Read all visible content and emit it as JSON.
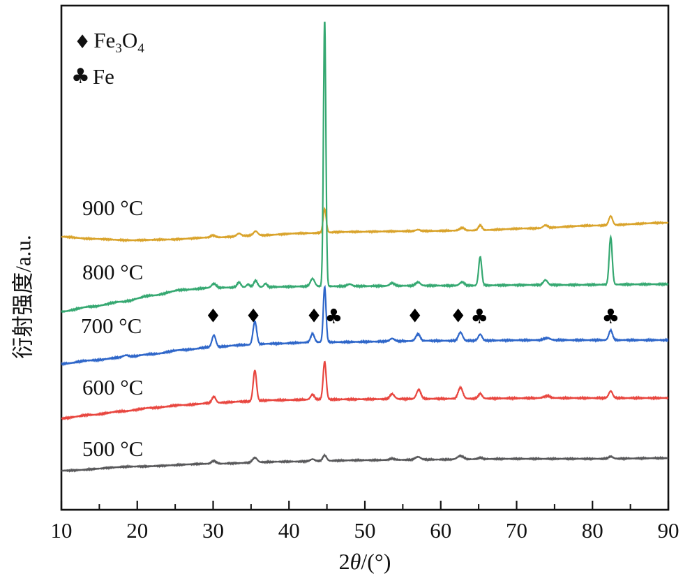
{
  "chart_data": {
    "type": "line",
    "title": "",
    "xlabel_parts": {
      "pre": "2",
      "theta": "θ",
      "post": "/(°)"
    },
    "ylabel": "衍射强度/a.u.",
    "xlim": [
      10,
      90
    ],
    "x_major_ticks": [
      10,
      20,
      30,
      40,
      50,
      60,
      70,
      80,
      90
    ],
    "x_minor_ticks": [
      15,
      25,
      35,
      45,
      55,
      65,
      75,
      85
    ],
    "grid": false,
    "axis_color": "#111111",
    "legend_position": "top-left",
    "legend": [
      {
        "symbol": "♦",
        "phase": "Fe3O4",
        "parts": [
          {
            "t": "Fe"
          },
          {
            "s": "3"
          },
          {
            "t": "O"
          },
          {
            "s": "4"
          }
        ]
      },
      {
        "symbol": "♣",
        "phase": "Fe",
        "parts": [
          {
            "t": "Fe"
          }
        ]
      }
    ],
    "peak_markers": [
      {
        "symbol": "♦",
        "phase": "Fe3O4",
        "two_theta": 30.0
      },
      {
        "symbol": "♦",
        "phase": "Fe3O4",
        "two_theta": 35.3
      },
      {
        "symbol": "♦",
        "phase": "Fe3O4",
        "two_theta": 43.3
      },
      {
        "symbol": "♣",
        "phase": "Fe",
        "two_theta": 45.9
      },
      {
        "symbol": "♦",
        "phase": "Fe3O4",
        "two_theta": 56.6
      },
      {
        "symbol": "♦",
        "phase": "Fe3O4",
        "two_theta": 62.3
      },
      {
        "symbol": "♣",
        "phase": "Fe",
        "two_theta": 65.1
      },
      {
        "symbol": "♣",
        "phase": "Fe",
        "two_theta": 82.4
      }
    ],
    "series": [
      {
        "name": "500 °C",
        "color": "#58585A",
        "seed": 5,
        "noise": 0.7,
        "baseline": [
          [
            10,
            674
          ],
          [
            20,
            668
          ],
          [
            30,
            664
          ],
          [
            40,
            661
          ],
          [
            50,
            659
          ],
          [
            60,
            658
          ],
          [
            70,
            657
          ],
          [
            80,
            657
          ],
          [
            90,
            656
          ]
        ],
        "peaks": [
          [
            30.1,
            4,
            0.3
          ],
          [
            35.5,
            7,
            0.3
          ],
          [
            43.1,
            3,
            0.3
          ],
          [
            44.7,
            8,
            0.25
          ],
          [
            53.6,
            2,
            0.35
          ],
          [
            57.0,
            4,
            0.35
          ],
          [
            62.6,
            5,
            0.4
          ],
          [
            65.2,
            2,
            0.3
          ],
          [
            82.4,
            3,
            0.3
          ]
        ]
      },
      {
        "name": "600 °C",
        "color": "#E8463F",
        "seed": 4,
        "noise": 0.8,
        "baseline": [
          [
            10,
            599
          ],
          [
            14,
            594
          ],
          [
            18,
            589
          ],
          [
            22,
            584
          ],
          [
            26,
            580
          ],
          [
            30,
            577
          ],
          [
            34,
            575
          ],
          [
            38,
            573
          ],
          [
            44,
            572
          ],
          [
            60,
            571
          ],
          [
            75,
            570
          ],
          [
            90,
            570
          ]
        ],
        "peaks": [
          [
            30.1,
            9,
            0.25
          ],
          [
            35.5,
            44,
            0.22
          ],
          [
            43.1,
            7,
            0.25
          ],
          [
            44.7,
            54,
            0.2
          ],
          [
            53.6,
            7,
            0.3
          ],
          [
            57.1,
            13,
            0.28
          ],
          [
            62.6,
            16,
            0.3
          ],
          [
            65.2,
            7,
            0.25
          ],
          [
            74.0,
            3,
            0.4
          ],
          [
            82.4,
            10,
            0.25
          ]
        ]
      },
      {
        "name": "700 °C",
        "color": "#2E66C9",
        "seed": 3,
        "noise": 0.8,
        "baseline": [
          [
            10,
            521
          ],
          [
            14,
            516
          ],
          [
            18,
            512
          ],
          [
            22,
            507
          ],
          [
            26,
            501
          ],
          [
            30,
            497
          ],
          [
            34,
            494
          ],
          [
            38,
            492
          ],
          [
            44,
            490
          ],
          [
            60,
            488
          ],
          [
            75,
            487
          ],
          [
            90,
            487
          ]
        ],
        "peaks": [
          [
            18.5,
            3,
            0.4
          ],
          [
            30.1,
            17,
            0.25
          ],
          [
            35.5,
            33,
            0.24
          ],
          [
            43.1,
            12,
            0.25
          ],
          [
            44.7,
            79,
            0.18
          ],
          [
            53.6,
            4,
            0.3
          ],
          [
            57.0,
            10,
            0.28
          ],
          [
            62.6,
            12,
            0.28
          ],
          [
            65.2,
            9,
            0.25
          ],
          [
            74.0,
            3,
            0.4
          ],
          [
            82.4,
            14,
            0.24
          ]
        ]
      },
      {
        "name": "900 °C",
        "color": "#D9A32B",
        "seed": 1,
        "noise": 0.7,
        "baseline": [
          [
            10,
            339
          ],
          [
            14,
            342
          ],
          [
            19,
            344
          ],
          [
            24,
            343
          ],
          [
            30,
            340
          ],
          [
            36,
            337
          ],
          [
            42,
            334
          ],
          [
            48,
            332
          ],
          [
            56,
            331
          ],
          [
            64,
            330
          ],
          [
            72,
            327
          ],
          [
            80,
            323
          ],
          [
            90,
            319
          ]
        ],
        "peaks": [
          [
            30.0,
            3,
            0.3
          ],
          [
            33.4,
            4,
            0.28
          ],
          [
            35.6,
            6,
            0.28
          ],
          [
            44.7,
            34,
            0.2
          ],
          [
            57.0,
            2,
            0.3
          ],
          [
            62.8,
            4,
            0.3
          ],
          [
            65.2,
            7,
            0.25
          ],
          [
            73.8,
            4,
            0.3
          ],
          [
            82.4,
            13,
            0.24
          ]
        ]
      },
      {
        "name": "800 °C",
        "color": "#35A871",
        "seed": 2,
        "noise": 0.8,
        "baseline": [
          [
            10,
            446
          ],
          [
            14,
            439
          ],
          [
            18,
            432
          ],
          [
            22,
            423
          ],
          [
            26,
            415
          ],
          [
            30,
            412
          ],
          [
            36,
            411
          ],
          [
            44,
            410
          ],
          [
            60,
            409
          ],
          [
            75,
            408
          ],
          [
            90,
            407
          ]
        ],
        "peaks": [
          [
            30.1,
            6,
            0.28
          ],
          [
            33.4,
            7,
            0.25
          ],
          [
            34.6,
            4,
            0.2
          ],
          [
            35.6,
            9,
            0.25
          ],
          [
            36.9,
            5,
            0.2
          ],
          [
            43.1,
            11,
            0.28
          ],
          [
            44.7,
            381,
            0.16
          ],
          [
            48.0,
            3,
            0.3
          ],
          [
            53.6,
            4,
            0.3
          ],
          [
            57.0,
            5,
            0.3
          ],
          [
            62.8,
            5,
            0.3
          ],
          [
            65.2,
            41,
            0.2
          ],
          [
            73.8,
            7,
            0.28
          ],
          [
            82.4,
            68,
            0.2
          ]
        ]
      }
    ],
    "curve_labels": [
      {
        "text": "900 °C",
        "series": "900 °C"
      },
      {
        "text": "800 °C",
        "series": "800 °C"
      },
      {
        "text": "700 °C",
        "series": "700 °C"
      },
      {
        "text": "600 °C",
        "series": "600 °C"
      },
      {
        "text": "500 °C",
        "series": "500 °C"
      }
    ]
  }
}
